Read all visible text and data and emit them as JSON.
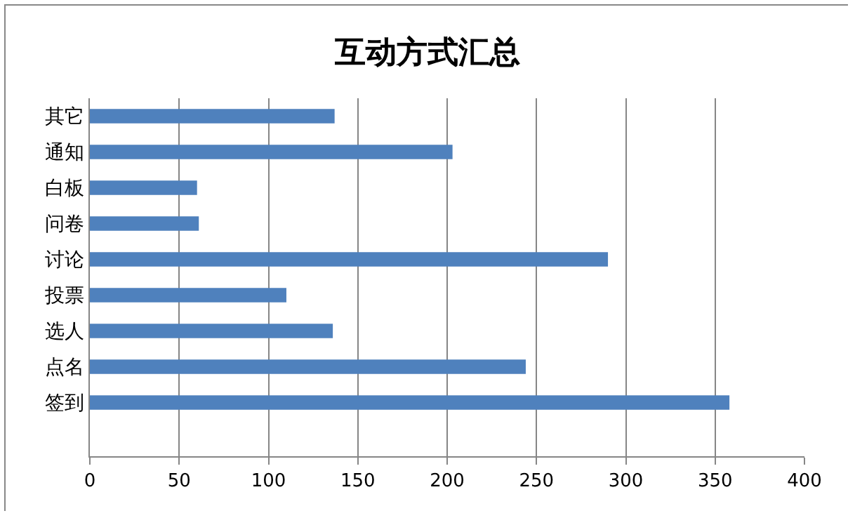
{
  "chart_data": {
    "type": "bar",
    "orientation": "horizontal",
    "title": "互动方式汇总",
    "categories": [
      "其它",
      "通知",
      "白板",
      "问卷",
      "讨论",
      "投票",
      "选人",
      "点名",
      "签到",
      null
    ],
    "values": [
      137,
      203,
      60,
      61,
      290,
      110,
      136,
      244,
      358,
      null
    ],
    "color": "#4f81bd",
    "xlim": [
      0,
      400
    ],
    "xticks": [
      0,
      50,
      100,
      150,
      200,
      250,
      300,
      350,
      400
    ],
    "grid": "x"
  }
}
